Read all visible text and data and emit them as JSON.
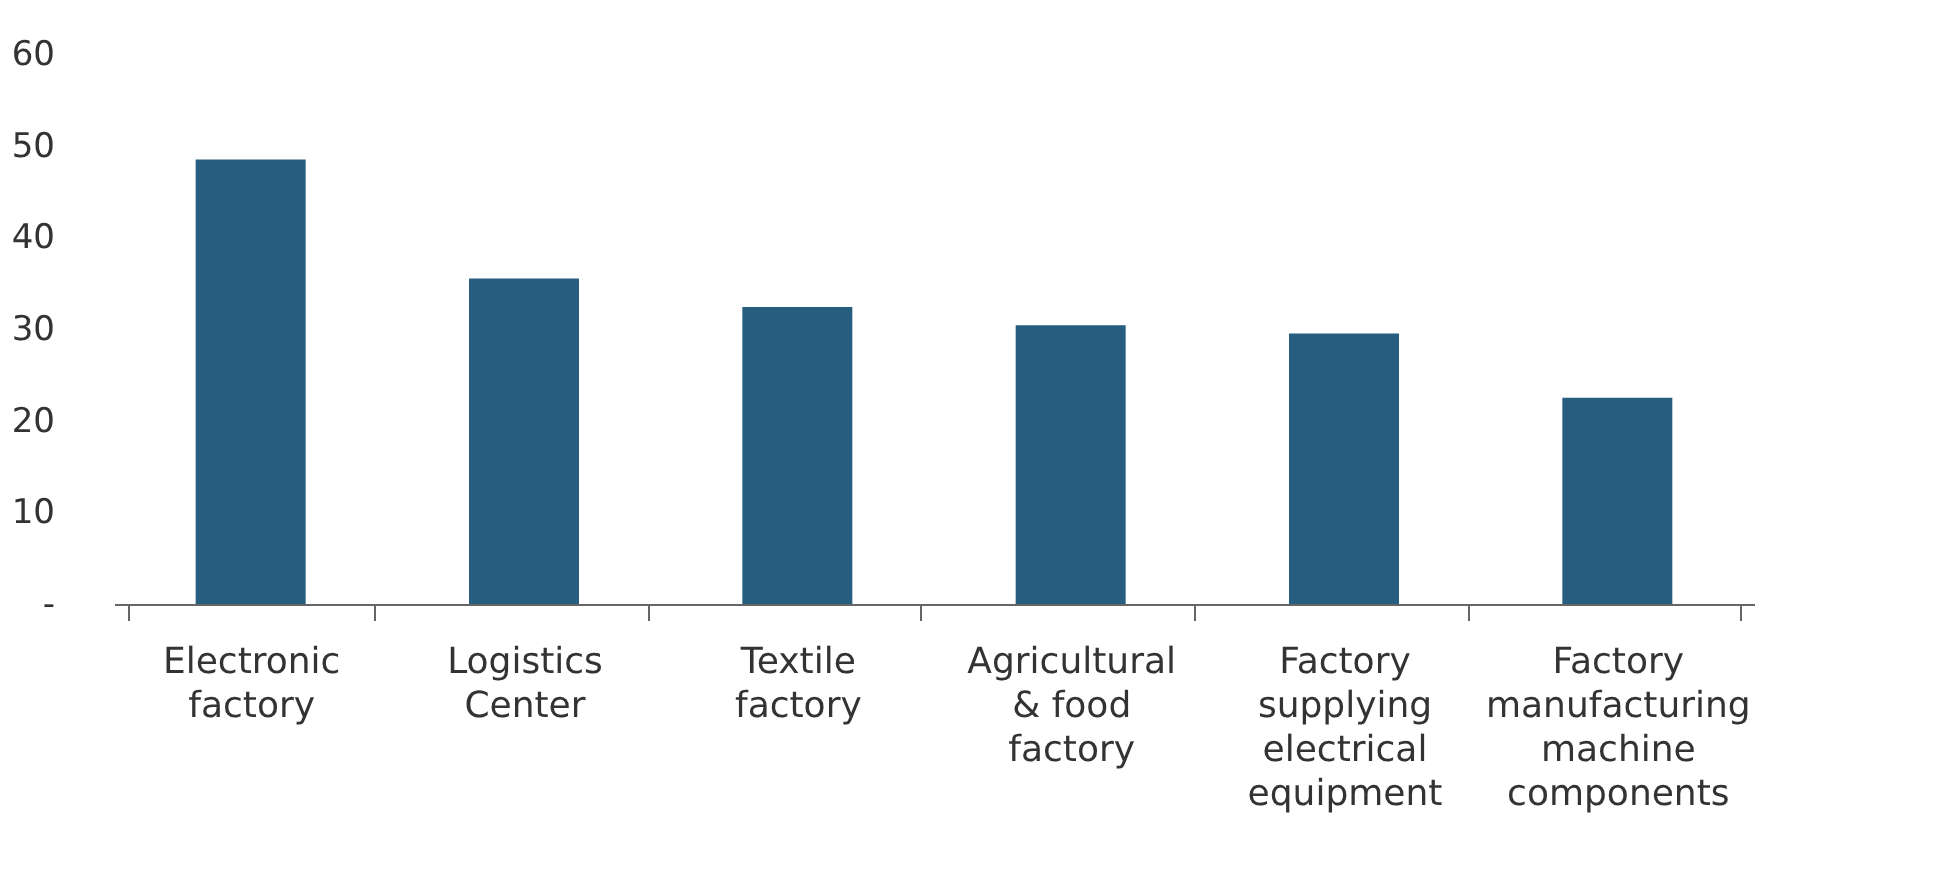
{
  "chart_data": {
    "type": "bar",
    "categories": [
      "Electronic factory",
      "Logistics Center",
      "Textile factory",
      "Agricultural & food factory",
      "Factory supplying electrical equipment",
      "Factory manufacturing machine components"
    ],
    "values": [
      48.5,
      35.5,
      32.4,
      30.4,
      29.5,
      22.5
    ],
    "color": "#275d7e",
    "ylim": [
      0,
      60
    ],
    "yticks": [
      {
        "value": 0,
        "label": "-"
      },
      10,
      20,
      30,
      40,
      50,
      60
    ],
    "grid": false
  }
}
